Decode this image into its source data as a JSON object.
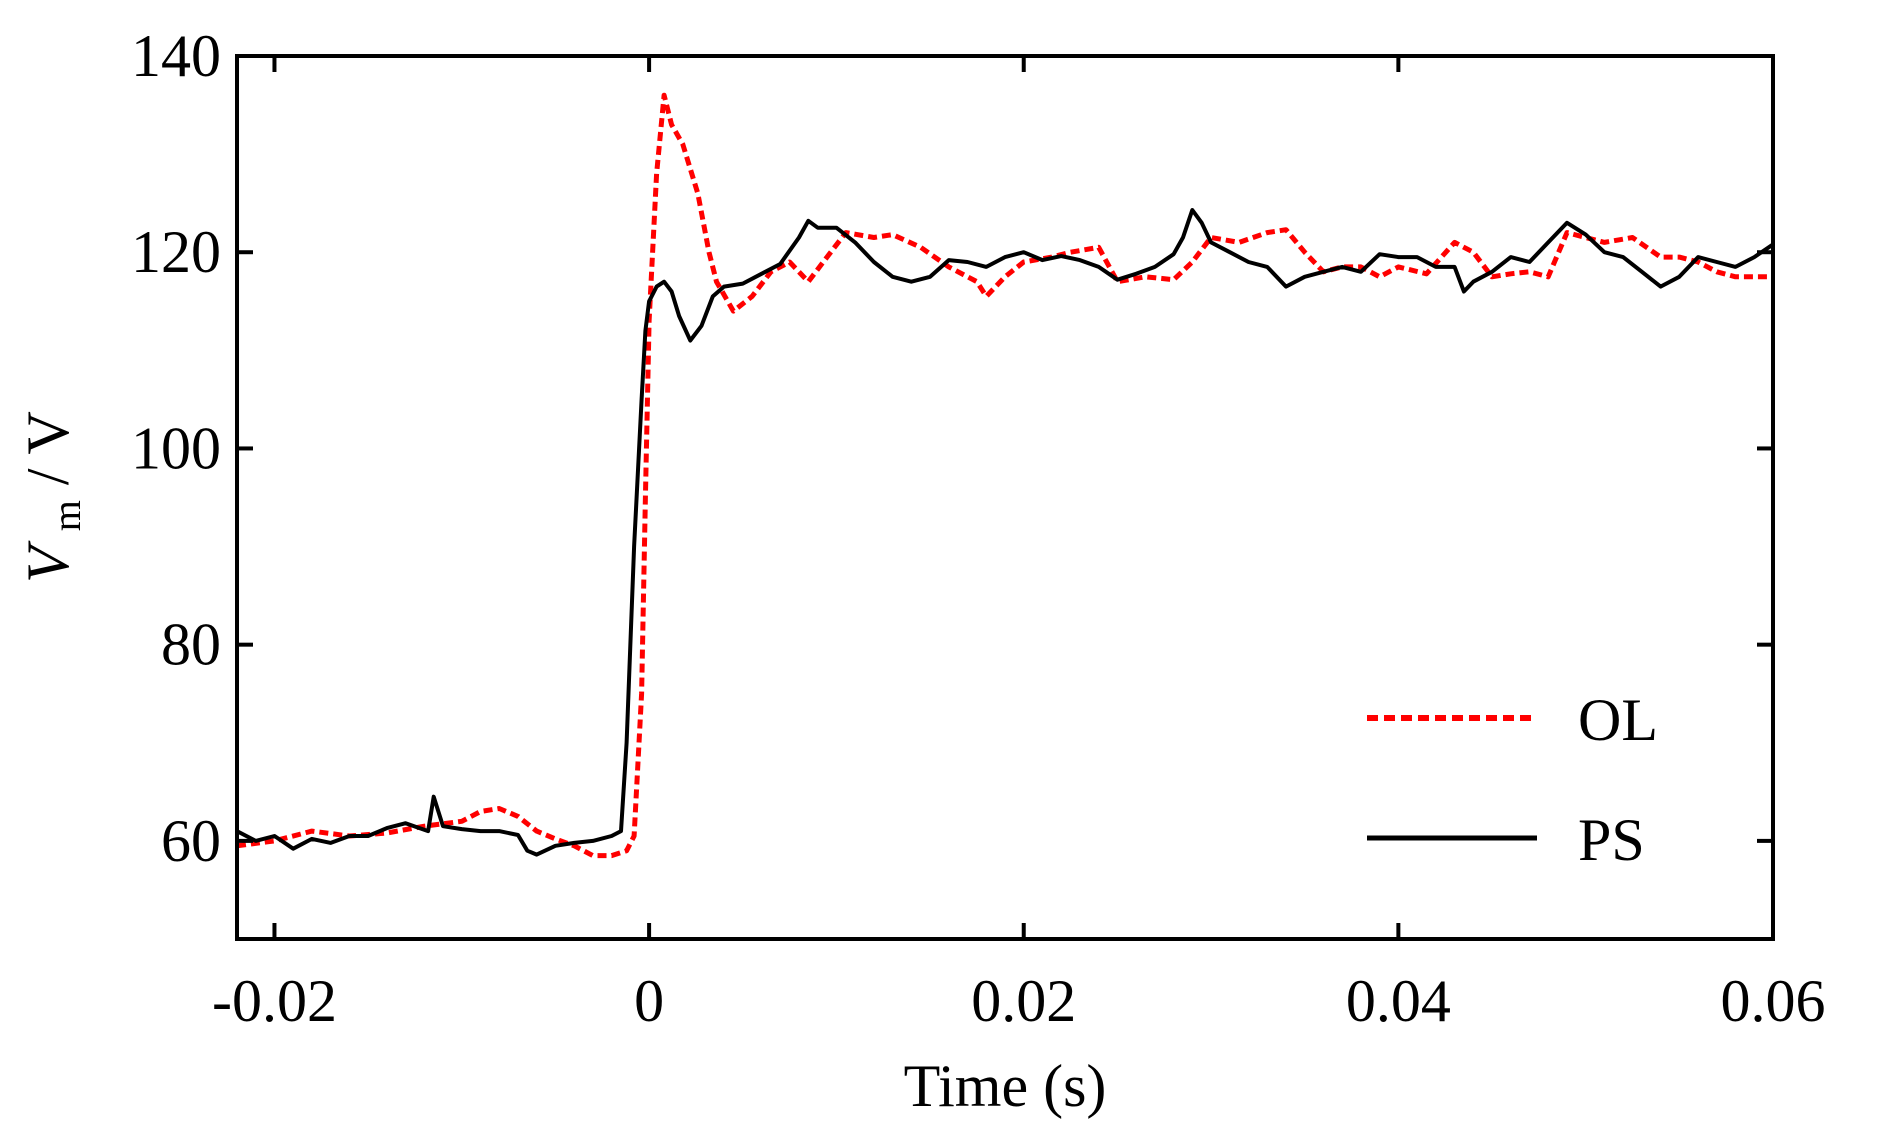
{
  "chart_data": {
    "type": "line",
    "title": "",
    "xlabel": "Time (s)",
    "ylabel_symbol": "V",
    "ylabel_subscript": "m",
    "ylabel_unit": " / V",
    "xlim": [
      -0.022,
      0.06
    ],
    "ylim": [
      50,
      140
    ],
    "xticks": [
      -0.02,
      0,
      0.02,
      0.04,
      0.06
    ],
    "xtick_labels": [
      "-0.02",
      "0",
      "0.02",
      "0.04",
      "0.06"
    ],
    "yticks": [
      60,
      80,
      100,
      120,
      140
    ],
    "ytick_labels": [
      "60",
      "80",
      "100",
      "120",
      "140"
    ],
    "grid": false,
    "legend_position": "bottom-right",
    "series": [
      {
        "name": "OL",
        "color": "#ff0000",
        "style": "dashed",
        "points": [
          [
            -0.022,
            59.5
          ],
          [
            -0.02,
            60.0
          ],
          [
            -0.018,
            61.0
          ],
          [
            -0.016,
            60.5
          ],
          [
            -0.014,
            60.8
          ],
          [
            -0.012,
            61.5
          ],
          [
            -0.01,
            62.0
          ],
          [
            -0.009,
            63.0
          ],
          [
            -0.008,
            63.3
          ],
          [
            -0.007,
            62.5
          ],
          [
            -0.006,
            61.0
          ],
          [
            -0.005,
            60.2
          ],
          [
            -0.004,
            59.5
          ],
          [
            -0.003,
            58.5
          ],
          [
            -0.002,
            58.5
          ],
          [
            -0.0012,
            59.0
          ],
          [
            -0.0008,
            60.5
          ],
          [
            -0.0004,
            75.0
          ],
          [
            -0.0002,
            95.0
          ],
          [
            0.0,
            113.0
          ],
          [
            0.0004,
            128.0
          ],
          [
            0.0008,
            136.0
          ],
          [
            0.0012,
            133.0
          ],
          [
            0.0018,
            131.0
          ],
          [
            0.0026,
            126.0
          ],
          [
            0.0032,
            120.0
          ],
          [
            0.0036,
            117.0
          ],
          [
            0.0045,
            114.0
          ],
          [
            0.0055,
            115.5
          ],
          [
            0.0065,
            118.0
          ],
          [
            0.0075,
            119.0
          ],
          [
            0.0085,
            117.0
          ],
          [
            0.0095,
            119.5
          ],
          [
            0.0105,
            122.0
          ],
          [
            0.012,
            121.5
          ],
          [
            0.013,
            121.8
          ],
          [
            0.0145,
            120.5
          ],
          [
            0.016,
            118.5
          ],
          [
            0.0175,
            117.0
          ],
          [
            0.018,
            115.5
          ],
          [
            0.019,
            117.5
          ],
          [
            0.02,
            119.0
          ],
          [
            0.0215,
            119.5
          ],
          [
            0.0225,
            120.0
          ],
          [
            0.024,
            120.5
          ],
          [
            0.025,
            117.0
          ],
          [
            0.0265,
            117.5
          ],
          [
            0.028,
            117.2
          ],
          [
            0.029,
            119.0
          ],
          [
            0.03,
            121.5
          ],
          [
            0.0315,
            121.0
          ],
          [
            0.033,
            122.0
          ],
          [
            0.034,
            122.3
          ],
          [
            0.035,
            120.0
          ],
          [
            0.036,
            118.0
          ],
          [
            0.037,
            118.5
          ],
          [
            0.038,
            118.5
          ],
          [
            0.039,
            117.5
          ],
          [
            0.04,
            118.5
          ],
          [
            0.0415,
            117.8
          ],
          [
            0.043,
            121.0
          ],
          [
            0.044,
            120.0
          ],
          [
            0.045,
            117.5
          ],
          [
            0.046,
            117.8
          ],
          [
            0.047,
            118.0
          ],
          [
            0.048,
            117.5
          ],
          [
            0.049,
            122.0
          ],
          [
            0.05,
            121.5
          ],
          [
            0.051,
            121.0
          ],
          [
            0.0525,
            121.5
          ],
          [
            0.054,
            119.5
          ],
          [
            0.055,
            119.5
          ],
          [
            0.056,
            119.0
          ],
          [
            0.057,
            118.0
          ],
          [
            0.058,
            117.5
          ],
          [
            0.0595,
            117.5
          ],
          [
            0.06,
            117.5
          ]
        ]
      },
      {
        "name": "PS",
        "color": "#000000",
        "style": "solid",
        "points": [
          [
            -0.022,
            61.0
          ],
          [
            -0.021,
            60.0
          ],
          [
            -0.02,
            60.5
          ],
          [
            -0.019,
            59.2
          ],
          [
            -0.018,
            60.2
          ],
          [
            -0.017,
            59.8
          ],
          [
            -0.016,
            60.5
          ],
          [
            -0.015,
            60.5
          ],
          [
            -0.014,
            61.3
          ],
          [
            -0.013,
            61.8
          ],
          [
            -0.0118,
            61.0
          ],
          [
            -0.0115,
            64.5
          ],
          [
            -0.011,
            61.5
          ],
          [
            -0.01,
            61.2
          ],
          [
            -0.009,
            61.0
          ],
          [
            -0.008,
            61.0
          ],
          [
            -0.007,
            60.6
          ],
          [
            -0.0065,
            59.0
          ],
          [
            -0.006,
            58.6
          ],
          [
            -0.005,
            59.5
          ],
          [
            -0.004,
            59.8
          ],
          [
            -0.003,
            60.0
          ],
          [
            -0.002,
            60.5
          ],
          [
            -0.0015,
            61.0
          ],
          [
            -0.0012,
            70.0
          ],
          [
            -0.0008,
            90.0
          ],
          [
            -0.0004,
            105.0
          ],
          [
            -0.0002,
            112.0
          ],
          [
            0.0,
            115.0
          ],
          [
            0.0004,
            116.5
          ],
          [
            0.0008,
            117.0
          ],
          [
            0.0012,
            116.0
          ],
          [
            0.0016,
            113.5
          ],
          [
            0.0022,
            111.0
          ],
          [
            0.0028,
            112.5
          ],
          [
            0.0034,
            115.5
          ],
          [
            0.004,
            116.5
          ],
          [
            0.005,
            116.8
          ],
          [
            0.006,
            117.8
          ],
          [
            0.007,
            118.8
          ],
          [
            0.008,
            121.5
          ],
          [
            0.0085,
            123.2
          ],
          [
            0.009,
            122.5
          ],
          [
            0.01,
            122.5
          ],
          [
            0.011,
            121.0
          ],
          [
            0.012,
            119.0
          ],
          [
            0.013,
            117.5
          ],
          [
            0.014,
            117.0
          ],
          [
            0.015,
            117.5
          ],
          [
            0.016,
            119.2
          ],
          [
            0.017,
            119.0
          ],
          [
            0.018,
            118.5
          ],
          [
            0.019,
            119.5
          ],
          [
            0.02,
            120.0
          ],
          [
            0.021,
            119.2
          ],
          [
            0.022,
            119.6
          ],
          [
            0.023,
            119.2
          ],
          [
            0.024,
            118.5
          ],
          [
            0.025,
            117.2
          ],
          [
            0.026,
            117.8
          ],
          [
            0.027,
            118.5
          ],
          [
            0.028,
            119.8
          ],
          [
            0.0285,
            121.5
          ],
          [
            0.029,
            124.3
          ],
          [
            0.0295,
            123.0
          ],
          [
            0.03,
            121.0
          ],
          [
            0.031,
            120.0
          ],
          [
            0.032,
            119.0
          ],
          [
            0.033,
            118.5
          ],
          [
            0.034,
            116.5
          ],
          [
            0.035,
            117.5
          ],
          [
            0.036,
            118.0
          ],
          [
            0.037,
            118.5
          ],
          [
            0.038,
            118.0
          ],
          [
            0.039,
            119.8
          ],
          [
            0.04,
            119.5
          ],
          [
            0.041,
            119.5
          ],
          [
            0.042,
            118.5
          ],
          [
            0.043,
            118.5
          ],
          [
            0.0435,
            116.0
          ],
          [
            0.044,
            117.0
          ],
          [
            0.045,
            118.0
          ],
          [
            0.046,
            119.5
          ],
          [
            0.047,
            119.0
          ],
          [
            0.048,
            121.0
          ],
          [
            0.049,
            123.0
          ],
          [
            0.05,
            121.8
          ],
          [
            0.051,
            120.0
          ],
          [
            0.052,
            119.5
          ],
          [
            0.053,
            118.0
          ],
          [
            0.054,
            116.5
          ],
          [
            0.055,
            117.5
          ],
          [
            0.056,
            119.5
          ],
          [
            0.057,
            119.0
          ],
          [
            0.058,
            118.5
          ],
          [
            0.059,
            119.5
          ],
          [
            0.06,
            120.8
          ]
        ]
      }
    ]
  }
}
